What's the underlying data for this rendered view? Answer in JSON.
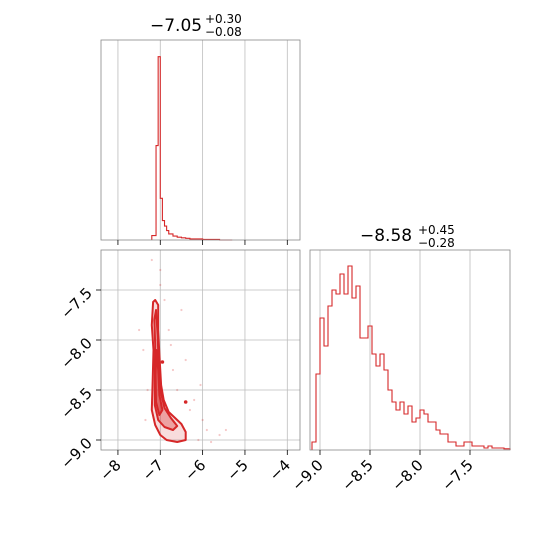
{
  "chart_data": {
    "type": "corner",
    "color": "#d62728",
    "grid": true,
    "panels": [
      {
        "name": "marginal-param-1",
        "type": "histogram",
        "title_value": "−7.05",
        "title_plus": "+0.30",
        "title_minus": "−0.08",
        "xlim": [
          -8.4,
          -3.7
        ],
        "xticks": [
          -8,
          -7,
          -6,
          -5,
          -4
        ],
        "bin_edges": [
          -7.2,
          -7.1,
          -7.05,
          -7.0,
          -6.95,
          -6.9,
          -6.85,
          -6.8,
          -6.7,
          -6.6,
          -6.5,
          -6.4,
          -6.3,
          -6.2,
          -6.0,
          -5.8,
          -5.6,
          -5.3
        ],
        "counts": [
          8,
          170,
          330,
          75,
          35,
          25,
          17,
          11,
          7,
          5,
          4,
          3,
          2,
          2,
          1,
          1,
          0
        ],
        "ymax": 360
      },
      {
        "name": "joint-param-1-param-2",
        "type": "contour",
        "xlim": [
          -8.4,
          -3.7
        ],
        "ylim": [
          -9.1,
          -7.1
        ],
        "xticks": [
          -8,
          -7,
          -6,
          -5,
          -4
        ],
        "yticks": [
          -9.0,
          -8.5,
          -8.0,
          -7.5
        ],
        "xticklabels": [
          "−8",
          "−7",
          "−6",
          "−5",
          "−4"
        ],
        "yticklabels": [
          "−9.0",
          "−8.5",
          "−8.0",
          "−7.5"
        ],
        "contours": [
          {
            "level": "outer",
            "points": [
              [
                -7.12,
                -7.6
              ],
              [
                -7.05,
                -7.65
              ],
              [
                -7.05,
                -7.9
              ],
              [
                -7.02,
                -8.15
              ],
              [
                -6.98,
                -8.45
              ],
              [
                -6.92,
                -8.6
              ],
              [
                -6.8,
                -8.72
              ],
              [
                -6.65,
                -8.78
              ],
              [
                -6.5,
                -8.84
              ],
              [
                -6.4,
                -8.92
              ],
              [
                -6.4,
                -9.0
              ],
              [
                -6.6,
                -9.02
              ],
              [
                -6.85,
                -9.0
              ],
              [
                -7.0,
                -8.95
              ],
              [
                -7.12,
                -8.85
              ],
              [
                -7.2,
                -8.7
              ],
              [
                -7.18,
                -8.4
              ],
              [
                -7.16,
                -8.1
              ],
              [
                -7.2,
                -7.85
              ],
              [
                -7.17,
                -7.62
              ]
            ]
          },
          {
            "level": "middle",
            "points": [
              [
                -7.1,
                -7.7
              ],
              [
                -7.06,
                -7.95
              ],
              [
                -7.04,
                -8.25
              ],
              [
                -7.0,
                -8.5
              ],
              [
                -6.9,
                -8.68
              ],
              [
                -6.75,
                -8.78
              ],
              [
                -6.6,
                -8.86
              ],
              [
                -6.7,
                -8.9
              ],
              [
                -6.9,
                -8.87
              ],
              [
                -7.05,
                -8.8
              ],
              [
                -7.13,
                -8.65
              ],
              [
                -7.13,
                -8.35
              ],
              [
                -7.12,
                -8.05
              ],
              [
                -7.14,
                -7.8
              ]
            ]
          },
          {
            "level": "inner",
            "points": [
              [
                -7.09,
                -8.1
              ],
              [
                -7.05,
                -8.3
              ],
              [
                -7.02,
                -8.55
              ],
              [
                -6.95,
                -8.7
              ],
              [
                -7.02,
                -8.75
              ],
              [
                -7.1,
                -8.62
              ],
              [
                -7.11,
                -8.35
              ]
            ]
          }
        ],
        "points_sample": [
          [
            -7.3,
            -8.5
          ],
          [
            -7.0,
            -7.3
          ],
          [
            -6.8,
            -7.9
          ],
          [
            -6.7,
            -8.3
          ],
          [
            -6.3,
            -8.7
          ],
          [
            -6.0,
            -8.8
          ],
          [
            -5.9,
            -8.9
          ],
          [
            -6.1,
            -9.0
          ],
          [
            -7.4,
            -8.1
          ],
          [
            -6.6,
            -8.5
          ],
          [
            -6.4,
            -8.2
          ],
          [
            -7.2,
            -7.2
          ],
          [
            -6.9,
            -7.6
          ],
          [
            -5.6,
            -8.95
          ],
          [
            -6.2,
            -8.6
          ],
          [
            -7.5,
            -7.9
          ],
          [
            -6.5,
            -7.7
          ],
          [
            -5.8,
            -9.02
          ],
          [
            -6.75,
            -8.05
          ],
          [
            -7.35,
            -8.8
          ],
          [
            -6.05,
            -8.45
          ],
          [
            -5.45,
            -8.9
          ],
          [
            -7.0,
            -7.45
          ]
        ],
        "highlight_points": [
          [
            -6.95,
            -8.22
          ],
          [
            -6.4,
            -8.62
          ]
        ]
      },
      {
        "name": "marginal-param-2",
        "type": "histogram",
        "title_value": "−8.58",
        "title_plus": "+0.45",
        "title_minus": "−0.28",
        "xlim": [
          -9.1,
          -7.1
        ],
        "xticks": [
          -9.0,
          -8.5,
          -8.0,
          -7.5
        ],
        "xticklabels": [
          "−9.0",
          "−8.5",
          "−8.0",
          "−7.5"
        ],
        "bin_edges": [
          -9.08,
          -9.04,
          -9.0,
          -8.96,
          -8.92,
          -8.88,
          -8.84,
          -8.8,
          -8.76,
          -8.72,
          -8.68,
          -8.64,
          -8.6,
          -8.56,
          -8.52,
          -8.48,
          -8.44,
          -8.4,
          -8.36,
          -8.32,
          -8.28,
          -8.24,
          -8.2,
          -8.16,
          -8.12,
          -8.08,
          -8.04,
          -8.0,
          -7.96,
          -7.92,
          -7.88,
          -7.84,
          -7.8,
          -7.76,
          -7.72,
          -7.68,
          -7.64,
          -7.6,
          -7.56,
          -7.52,
          -7.48,
          -7.44,
          -7.4,
          -7.36,
          -7.32,
          -7.28,
          -7.24,
          -7.2,
          -7.16,
          -7.12,
          -7.1
        ],
        "counts": [
          2,
          19,
          33,
          26,
          36,
          40,
          39,
          44,
          39,
          46,
          38,
          41,
          28,
          28,
          31,
          24,
          21,
          24,
          20,
          15,
          12,
          10,
          12,
          9,
          11,
          7,
          8,
          10,
          9,
          7,
          7,
          5,
          4,
          4,
          2,
          2,
          1,
          1,
          2,
          2,
          1,
          1,
          1,
          0.5,
          1,
          0.5,
          0.5,
          0.5,
          0.3,
          0.3
        ],
        "ymax": 50
      }
    ]
  }
}
